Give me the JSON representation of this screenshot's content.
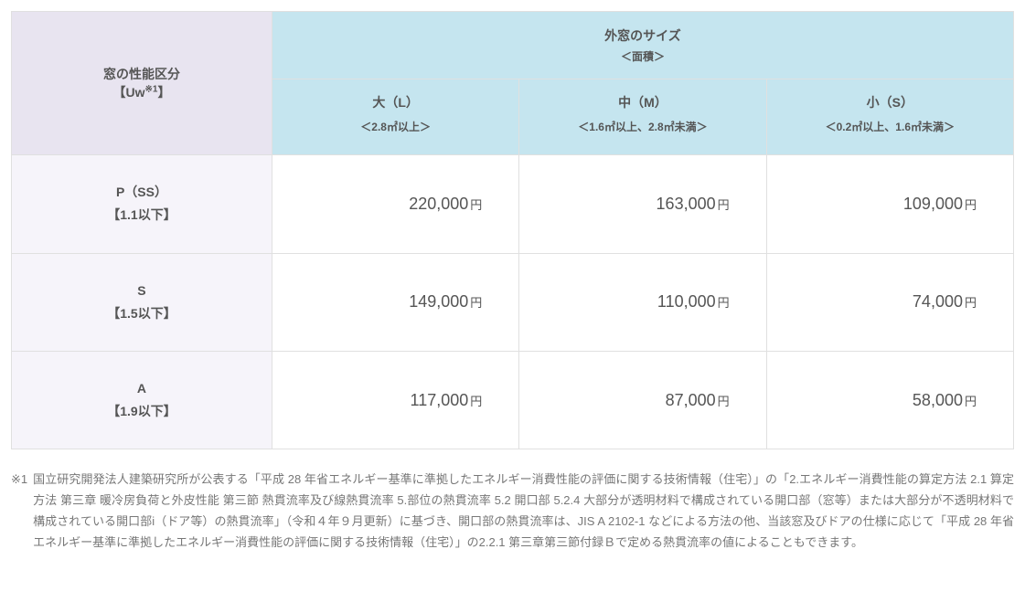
{
  "table": {
    "corner_header_line1": "窓の性能区分",
    "corner_header_line2_pre": "【Uw",
    "corner_header_sup": "※1",
    "corner_header_line2_post": "】",
    "top_header_line1": "外窓のサイズ",
    "top_header_line2": "＜面積＞",
    "cols": [
      {
        "label": "大（L）",
        "sub": "＜2.8㎡以上＞"
      },
      {
        "label": "中（M）",
        "sub": "＜1.6㎡以上、2.8㎡未満＞"
      },
      {
        "label": "小（S）",
        "sub": "＜0.2㎡以上、1.6㎡未満＞"
      }
    ],
    "rows": [
      {
        "label": "P（SS）",
        "sub": "【1.1以下】",
        "values": [
          "220,000",
          "163,000",
          "109,000"
        ]
      },
      {
        "label": "S",
        "sub": "【1.5以下】",
        "values": [
          "149,000",
          "110,000",
          "74,000"
        ]
      },
      {
        "label": "A",
        "sub": "【1.9以下】",
        "values": [
          "117,000",
          "87,000",
          "58,000"
        ]
      }
    ],
    "currency_suffix": "円"
  },
  "footnote": {
    "mark": "※1",
    "text": "国立研究開発法人建築研究所が公表する「平成 28 年省エネルギー基準に準拠したエネルギー消費性能の評価に関する技術情報（住宅）」の「2.エネルギー消費性能の算定方法 2.1 算定方法 第三章 暖冷房負荷と外皮性能 第三節 熱貫流率及び線熱貫流率 5.部位の熱貫流率 5.2 開口部 5.2.4 大部分が透明材料で構成されている開口部（窓等）または大部分が不透明材料で構成されている開口部i（ドア等）の熱貫流率」（令和４年９月更新）に基づき、開口部の熱貫流率は、JIS A 2102-1 などによる方法の他、当該窓及びドアの仕様に応じて「平成 28 年省エネルギー基準に準拠したエネルギー消費性能の評価に関する技術情報（住宅）」の2.2.1 第三章第三節付録Ｂで定める熱貫流率の値によることもできます。"
  }
}
